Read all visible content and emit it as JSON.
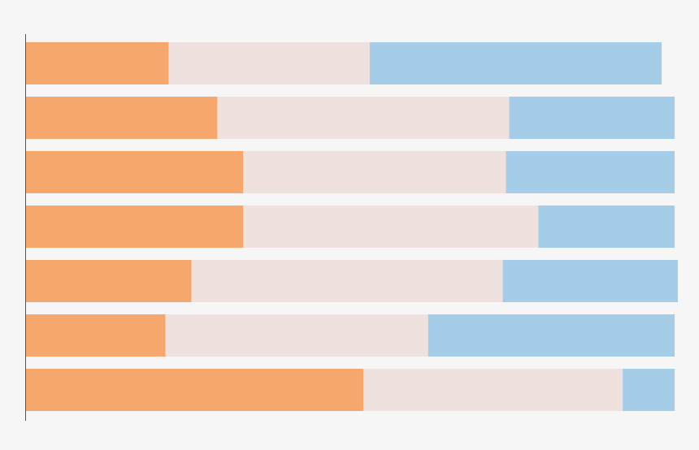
{
  "chart_data": {
    "type": "bar",
    "orientation": "horizontal",
    "stacked": true,
    "title": "",
    "xlabel": "",
    "ylabel": "",
    "grid": false,
    "legend": "none",
    "xlim": [
      0,
      100
    ],
    "rows": 7,
    "series": [
      {
        "values": [
          22,
          29.5,
          33.5,
          33.5,
          25.5,
          21.5,
          52
        ],
        "color": "#f5a76e"
      },
      {
        "values": [
          31,
          45,
          40.5,
          45.5,
          48,
          40.5,
          40
        ],
        "color": "#efe2de"
      },
      {
        "values": [
          45,
          25.5,
          26,
          21,
          27,
          38,
          8
        ],
        "color": "#a6cde8"
      }
    ],
    "colors": {
      "background": "#f6f6f6",
      "axis": "#555555"
    }
  }
}
